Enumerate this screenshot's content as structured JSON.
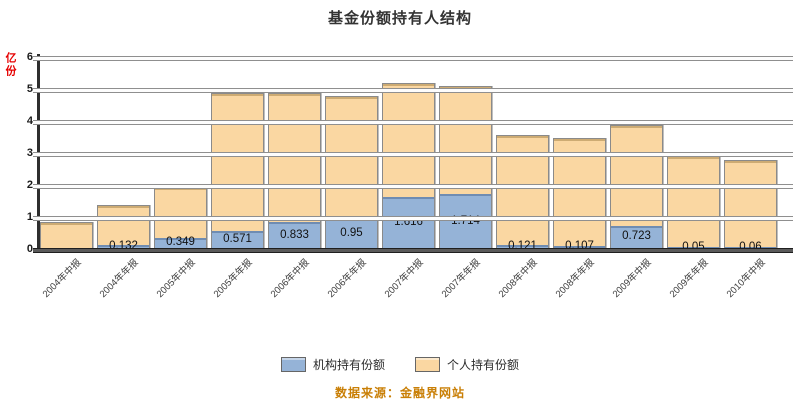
{
  "title": "基金份额持有人结构",
  "y_axis": {
    "unit": "亿份",
    "ticks": [
      "6",
      "5",
      "4",
      "3",
      "2",
      "1",
      "0"
    ]
  },
  "legend": {
    "items": [
      {
        "label": "机构持有份额",
        "color": "#95B3D7"
      },
      {
        "label": "个人持有份额",
        "color": "#FAD7A2"
      }
    ]
  },
  "watermark": "数据来源：金融界网站",
  "chart_data": {
    "type": "bar",
    "stacked": true,
    "title": "基金份额持有人结构",
    "ylabel": "亿份",
    "ylim": [
      0,
      6
    ],
    "y_tick_step": 1,
    "grid": "horizontal-3d-bands",
    "legend_position": "bottom",
    "categories": [
      "2004年中报",
      "2004年年报",
      "2005年中报",
      "2005年年报",
      "2006年中报",
      "2006年年报",
      "2007年中报",
      "2007年年报",
      "2008年中报",
      "2008年年报",
      "2009年中报",
      "2009年年报",
      "2010年中报"
    ],
    "series": [
      {
        "name": "机构持有份额",
        "color": "#95B3D7",
        "values": [
          0,
          0.132,
          0.349,
          0.571,
          0.833,
          0.95,
          1.616,
          1.714,
          0.121,
          0.107,
          0.723,
          0.05,
          0.06
        ],
        "labels": [
          "",
          "0.132",
          "0.349",
          "0.571",
          "0.833",
          "0.95",
          "1.616",
          "1.714",
          "0.121",
          "0.107",
          "0.723",
          "0.05",
          "0.06"
        ]
      },
      {
        "name": "个人持有份额",
        "color": "#FAD7A2",
        "values": [
          0.86,
          1.26,
          1.63,
          4.35,
          4.06,
          3.85,
          3.61,
          3.4,
          3.46,
          3.39,
          3.17,
          2.88,
          2.76
        ]
      }
    ],
    "totals": [
      0.86,
      1.39,
      1.98,
      4.92,
      4.89,
      4.8,
      5.23,
      5.11,
      3.58,
      3.5,
      3.89,
      2.93,
      2.82
    ]
  }
}
